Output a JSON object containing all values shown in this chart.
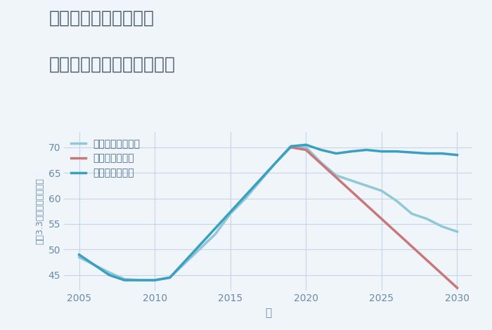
{
  "title_line1": "福岡県太宰府市御笠の",
  "title_line2": "中古マンションの価格推移",
  "xlabel": "年",
  "ylabel": "坪（3.3㎡）単価（万円）",
  "background_color": "#f0f5fa",
  "plot_background": "#f0f5fa",
  "grid_color": "#c5d5e5",
  "good_scenario": {
    "label": "グッドシナリオ",
    "color": "#3a9fc0",
    "x": [
      2005,
      2007,
      2008,
      2009,
      2010,
      2011,
      2019,
      2020,
      2021,
      2022,
      2023,
      2024,
      2025,
      2026,
      2027,
      2028,
      2029,
      2030
    ],
    "y": [
      49.0,
      45.0,
      44.0,
      44.0,
      44.0,
      44.5,
      70.2,
      70.5,
      69.5,
      68.8,
      69.2,
      69.5,
      69.2,
      69.2,
      69.0,
      68.8,
      68.8,
      68.5
    ]
  },
  "bad_scenario": {
    "label": "バッドシナリオ",
    "color": "#c87878",
    "x": [
      2019,
      2020,
      2025,
      2030
    ],
    "y": [
      70.0,
      69.5,
      56.0,
      42.5
    ]
  },
  "normal_scenario": {
    "label": "ノーマルシナリオ",
    "color": "#90c8d8",
    "x": [
      2005,
      2007,
      2008,
      2009,
      2010,
      2011,
      2014,
      2015,
      2016,
      2017,
      2018,
      2019,
      2020,
      2021,
      2022,
      2023,
      2024,
      2025,
      2026,
      2027,
      2028,
      2029,
      2030
    ],
    "y": [
      48.5,
      45.5,
      44.2,
      44.0,
      44.0,
      44.5,
      53.0,
      57.0,
      60.0,
      63.5,
      67.0,
      70.0,
      70.0,
      67.0,
      64.5,
      63.5,
      62.5,
      61.5,
      59.5,
      57.0,
      56.0,
      54.5,
      53.5
    ]
  },
  "xlim": [
    2004,
    2031
  ],
  "ylim": [
    42,
    73
  ],
  "xticks": [
    2005,
    2010,
    2015,
    2020,
    2025,
    2030
  ],
  "yticks": [
    45,
    50,
    55,
    60,
    65,
    70
  ],
  "title_color": "#4a5a6a",
  "tick_color": "#6a8aaa",
  "legend_text_color": "#4a6a8a",
  "line_width": 2.5,
  "title_fontsize": 18,
  "figsize": [
    7.0,
    4.7
  ],
  "dpi": 100
}
